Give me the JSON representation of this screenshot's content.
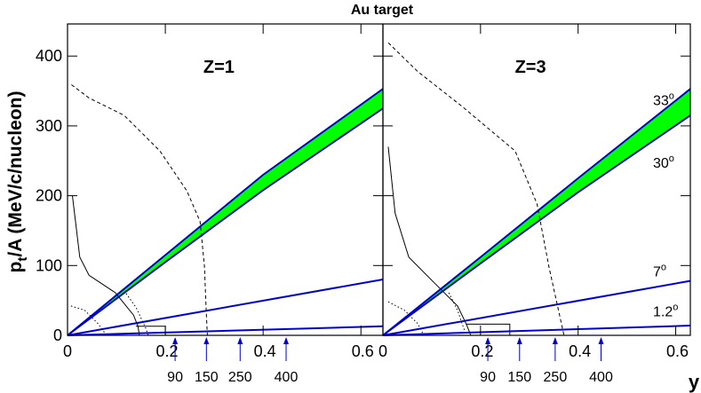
{
  "title": "Au target",
  "xlabel": "y",
  "chart_data": [
    {
      "type": "line",
      "label": "Z=1",
      "ylabel": {
        "main": "p",
        "sub": "t",
        "rest": "/A (MeV/c/nucleon)"
      },
      "xlim": [
        0,
        0.645
      ],
      "ylim": [
        0,
        446
      ],
      "xticks": [
        0,
        0.2,
        0.4,
        0.6
      ],
      "yticks": [
        0,
        100,
        200,
        300,
        400
      ],
      "band_fill": "#00ff00",
      "series": [
        {
          "color": "#000000",
          "dash": "solid",
          "x": [
            0.01,
            0.025,
            0.044,
            0.098,
            0.135,
            0.144,
            0.147,
            0.15,
            0.14,
            0.2,
            0.2
          ],
          "values": [
            200,
            112,
            86,
            61,
            29,
            13,
            0,
            null,
            13,
            13,
            0
          ]
        },
        {
          "color": "#000000",
          "dash": "dashed",
          "x": [
            0.008,
            0.044,
            0.116,
            0.189,
            0.244,
            0.271,
            0.28,
            0.284,
            0.286
          ],
          "values": [
            359,
            340,
            315,
            264,
            207,
            163,
            99,
            29,
            0
          ]
        },
        {
          "color": "#000000",
          "dash": "dotted",
          "x": [
            0.007,
            0.035,
            0.062,
            0.08,
            0.1,
            0.12,
            0.14,
            0.16,
            0.165
          ],
          "values": [
            42,
            36,
            17,
            0,
            null,
            60,
            40,
            10,
            0
          ]
        },
        {
          "color": "#0000d0",
          "dash": "solid",
          "x": [
            0,
            0.645
          ],
          "values": [
            0,
            13
          ]
        },
        {
          "color": "#0000d0",
          "dash": "solid",
          "x": [
            0,
            0.645
          ],
          "values": [
            0,
            80
          ]
        },
        {
          "color": "#0000d0",
          "dash": "solid",
          "x": [
            0,
            0.2,
            0.4,
            0.645
          ],
          "values": [
            0,
            105,
            208,
            325
          ]
        },
        {
          "color": "#0000d0",
          "dash": "solid",
          "x": [
            0,
            0.2,
            0.4,
            0.645
          ],
          "values": [
            0,
            115,
            230,
            353
          ]
        }
      ],
      "arrows": {
        "color": "#0000d0",
        "x": [
          0.22,
          0.284,
          0.353,
          0.447
        ],
        "labels": [
          "90",
          "150",
          "250",
          "400"
        ]
      }
    },
    {
      "type": "line",
      "label": "Z=3",
      "xlim": [
        0,
        0.63
      ],
      "ylim": [
        0,
        446
      ],
      "xticks": [
        0,
        0.2,
        0.4,
        0.6
      ],
      "band_fill": "#00ff00",
      "series": [
        {
          "color": "#000000",
          "dash": "solid",
          "x": [
            0.011,
            0.025,
            0.053,
            0.107,
            0.153,
            0.171,
            0.18,
            0.19,
            0.17,
            0.26,
            0.26
          ],
          "values": [
            270,
            175,
            112,
            74,
            42,
            16,
            0,
            null,
            16,
            16,
            0
          ]
        },
        {
          "color": "#000000",
          "dash": "dashed",
          "x": [
            0.011,
            0.071,
            0.162,
            0.271,
            0.316,
            0.34,
            0.362,
            0.371
          ],
          "values": [
            419,
            378,
            328,
            264,
            188,
            99,
            29,
            0
          ]
        },
        {
          "color": "#000000",
          "dash": "dotted",
          "x": [
            0.011,
            0.044,
            0.071,
            0.084,
            0.1,
            0.135,
            0.153,
            0.162,
            0.171
          ],
          "values": [
            48,
            36,
            17,
            0,
            null,
            61,
            36,
            17,
            0
          ]
        },
        {
          "color": "#0000d0",
          "dash": "solid",
          "label": "1.2",
          "label_sup": "o",
          "x": [
            0,
            0.63
          ],
          "values": [
            0,
            14
          ]
        },
        {
          "color": "#0000d0",
          "dash": "solid",
          "label": "7",
          "label_sup": "o",
          "x": [
            0,
            0.63
          ],
          "values": [
            0,
            78
          ]
        },
        {
          "color": "#0000d0",
          "dash": "solid",
          "label": "30",
          "label_sup": "o",
          "x": [
            0,
            0.2,
            0.4,
            0.63
          ],
          "values": [
            0,
            103,
            205,
            315
          ]
        },
        {
          "color": "#0000d0",
          "dash": "solid",
          "label": "33",
          "label_sup": "o",
          "x": [
            0,
            0.2,
            0.4,
            0.63
          ],
          "values": [
            0,
            112,
            225,
            353
          ]
        }
      ],
      "arrows": {
        "color": "#0000d0",
        "x": [
          0.215,
          0.28,
          0.353,
          0.447
        ],
        "labels": [
          "90",
          "150",
          "250",
          "400"
        ]
      }
    }
  ]
}
